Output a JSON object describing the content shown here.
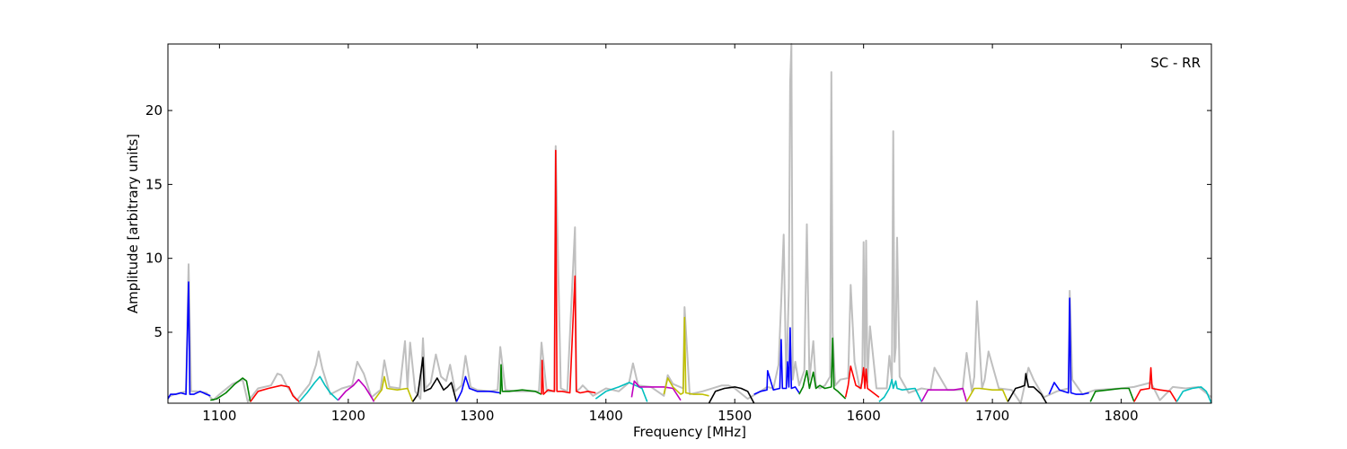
{
  "chart_data": {
    "type": "line",
    "title": "",
    "annotation": "SC - RR",
    "xlabel": "Frequency [MHz]",
    "ylabel": "Amplitude [arbitrary units]",
    "xlim": [
      1060,
      1870
    ],
    "ylim": [
      0.2,
      24.5
    ],
    "xticks": [
      1100,
      1200,
      1300,
      1400,
      1500,
      1600,
      1700,
      1800
    ],
    "yticks": [
      5,
      10,
      15,
      20
    ],
    "grid": false,
    "background_series": {
      "color": "#bfbfbf",
      "x": [
        1060,
        1065,
        1070,
        1074,
        1076,
        1078,
        1082,
        1090,
        1095,
        1100,
        1110,
        1118,
        1122,
        1130,
        1140,
        1145,
        1148,
        1152,
        1160,
        1170,
        1175,
        1177,
        1180,
        1186,
        1195,
        1203,
        1207,
        1212,
        1218,
        1225,
        1228,
        1232,
        1240,
        1244,
        1246,
        1248,
        1252,
        1256,
        1258,
        1260,
        1264,
        1268,
        1272,
        1276,
        1279,
        1283,
        1288,
        1291,
        1295,
        1300,
        1310,
        1316,
        1318,
        1322,
        1330,
        1340,
        1348,
        1350,
        1354,
        1360,
        1361,
        1365,
        1370,
        1376,
        1377,
        1380,
        1382,
        1390,
        1400,
        1410,
        1418,
        1421,
        1425,
        1435,
        1445,
        1448,
        1452,
        1460,
        1461,
        1465,
        1475,
        1490,
        1495,
        1500,
        1510,
        1520,
        1525,
        1530,
        1534,
        1536,
        1538,
        1540,
        1542,
        1543,
        1544,
        1545,
        1547,
        1550,
        1554,
        1556,
        1558,
        1561,
        1563,
        1566,
        1570,
        1574,
        1575,
        1576,
        1578,
        1582,
        1588,
        1590,
        1593,
        1597,
        1599,
        1600,
        1601,
        1602,
        1603,
        1605,
        1610,
        1618,
        1620,
        1622,
        1623,
        1624,
        1625,
        1626,
        1628,
        1635,
        1645,
        1652,
        1655,
        1665,
        1675,
        1677,
        1680,
        1684,
        1686,
        1688,
        1692,
        1694,
        1697,
        1705,
        1715,
        1722,
        1725,
        1728,
        1732,
        1740,
        1750,
        1759,
        1760,
        1762,
        1770,
        1780,
        1800,
        1810,
        1823,
        1830,
        1840,
        1850,
        1860,
        1870
      ],
      "y": [
        0.6,
        0.8,
        0.9,
        1.0,
        9.6,
        1.0,
        1.0,
        0.9,
        0.4,
        0.8,
        1.5,
        1.8,
        0.3,
        1.2,
        1.4,
        2.2,
        2.1,
        1.4,
        0.4,
        1.5,
        2.8,
        3.7,
        2.5,
        0.8,
        1.2,
        1.4,
        3.0,
        2.2,
        0.6,
        1.1,
        3.1,
        1.3,
        1.2,
        4.4,
        1.2,
        4.3,
        1.0,
        0.5,
        4.6,
        1.2,
        1.6,
        3.5,
        2.0,
        1.7,
        2.8,
        1.0,
        1.4,
        3.4,
        1.3,
        1.1,
        1.0,
        1.1,
        4.0,
        1.1,
        1.0,
        1.0,
        1.0,
        4.3,
        1.0,
        1.0,
        17.6,
        1.2,
        1.0,
        12.1,
        1.0,
        1.2,
        1.4,
        0.7,
        1.2,
        1.0,
        1.6,
        2.9,
        1.4,
        1.3,
        0.7,
        2.1,
        1.5,
        1.2,
        6.7,
        0.8,
        1.0,
        1.4,
        1.4,
        1.2,
        0.5,
        1.0,
        1.3,
        1.2,
        2.8,
        7.0,
        11.6,
        1.4,
        8.0,
        21.9,
        24.5,
        1.8,
        3.0,
        1.4,
        2.4,
        12.3,
        1.8,
        4.4,
        1.4,
        1.2,
        1.4,
        2.0,
        22.6,
        5.0,
        1.4,
        1.8,
        1.9,
        8.2,
        3.0,
        1.2,
        1.6,
        11.1,
        2.0,
        11.2,
        1.6,
        5.4,
        1.2,
        1.2,
        3.4,
        1.8,
        18.6,
        3.0,
        4.0,
        11.4,
        2.0,
        0.9,
        1.2,
        1.1,
        2.6,
        1.1,
        1.1,
        1.2,
        3.6,
        1.0,
        2.0,
        7.1,
        1.2,
        1.8,
        3.7,
        1.2,
        1.1,
        0.2,
        1.4,
        2.6,
        1.8,
        0.6,
        1.0,
        1.2,
        7.8,
        1.8,
        0.8,
        1.1,
        1.2,
        1.3,
        1.6,
        0.4,
        1.3,
        1.2,
        1.3,
        0.6
      ]
    },
    "series": [
      {
        "color": "#0000ff",
        "x": [
          1060,
          1062,
          1066,
          1070,
          1074,
          1076,
          1077,
          1080,
          1085,
          1090,
          1093
        ],
        "y": [
          0.5,
          0.8,
          0.8,
          0.9,
          0.8,
          8.4,
          0.8,
          0.8,
          1.0,
          0.8,
          0.7
        ]
      },
      {
        "color": "#008000",
        "x": [
          1093,
          1098,
          1105,
          1112,
          1118,
          1121,
          1124
        ],
        "y": [
          0.4,
          0.5,
          0.9,
          1.5,
          1.9,
          1.7,
          0.3
        ]
      },
      {
        "color": "#ff0000",
        "x": [
          1124,
          1130,
          1138,
          1148,
          1154,
          1157,
          1162
        ],
        "y": [
          0.3,
          1.0,
          1.2,
          1.4,
          1.3,
          0.7,
          0.3
        ]
      },
      {
        "color": "#00bfbf",
        "x": [
          1162,
          1168,
          1174,
          1178,
          1182,
          1186,
          1192
        ],
        "y": [
          0.3,
          0.9,
          1.6,
          2.0,
          1.4,
          0.9,
          0.4
        ]
      },
      {
        "color": "#bf00bf",
        "x": [
          1192,
          1198,
          1204,
          1208,
          1213,
          1218,
          1220
        ],
        "y": [
          0.4,
          1.0,
          1.4,
          1.8,
          1.3,
          0.6,
          0.3
        ]
      },
      {
        "color": "#bfbf00",
        "x": [
          1220,
          1226,
          1228,
          1230,
          1238,
          1246,
          1250
        ],
        "y": [
          0.4,
          1.1,
          2.0,
          1.2,
          1.1,
          1.2,
          0.3
        ]
      },
      {
        "color": "#000000",
        "x": [
          1250,
          1254,
          1258,
          1259,
          1264,
          1269,
          1274,
          1277,
          1280,
          1284
        ],
        "y": [
          0.3,
          0.8,
          3.3,
          1.0,
          1.2,
          1.9,
          1.1,
          1.3,
          1.6,
          0.3
        ]
      },
      {
        "color": "#0000ff",
        "x": [
          1284,
          1288,
          1291,
          1294,
          1300,
          1310,
          1318
        ],
        "y": [
          0.3,
          1.0,
          2.0,
          1.2,
          1.0,
          1.0,
          0.9
        ]
      },
      {
        "color": "#008000",
        "x": [
          1318,
          1318.6,
          1319.5,
          1325,
          1335,
          1345,
          1350
        ],
        "y": [
          0.8,
          2.8,
          1.0,
          1.0,
          1.1,
          1.0,
          0.8
        ]
      },
      {
        "color": "#ff0000",
        "x": [
          1350,
          1350.5,
          1351.5,
          1355,
          1360,
          1361,
          1362,
          1366,
          1372,
          1376,
          1377,
          1380,
          1386,
          1392
        ],
        "y": [
          0.8,
          3.1,
          0.8,
          1.1,
          1.0,
          17.3,
          1.0,
          1.0,
          0.9,
          8.8,
          1.0,
          0.9,
          1.0,
          0.9
        ]
      },
      {
        "color": "#00bfbf",
        "x": [
          1392,
          1400,
          1410,
          1418,
          1423,
          1428,
          1432
        ],
        "y": [
          0.5,
          1.0,
          1.3,
          1.6,
          1.4,
          1.2,
          0.3
        ]
      },
      {
        "color": "#bf00bf",
        "x": [
          1420,
          1422,
          1426,
          1435,
          1445,
          1452,
          1458
        ],
        "y": [
          0.6,
          1.7,
          1.3,
          1.3,
          1.3,
          1.2,
          0.4
        ]
      },
      {
        "color": "#bfbf00",
        "x": [
          1445,
          1448,
          1452,
          1458,
          1460,
          1461,
          1462,
          1468,
          1475,
          1480
        ],
        "y": [
          0.8,
          1.9,
          1.3,
          0.8,
          0.9,
          6.0,
          0.9,
          0.8,
          0.8,
          0.7
        ]
      },
      {
        "color": "#000000",
        "x": [
          1480,
          1485,
          1492,
          1500,
          1505,
          1510,
          1515
        ],
        "y": [
          0.2,
          1.0,
          1.2,
          1.3,
          1.2,
          1.0,
          0.2
        ]
      },
      {
        "color": "#0000ff",
        "x": [
          1515,
          1520,
          1525,
          1525.5,
          1530,
          1535,
          1536,
          1537,
          1540,
          1541,
          1542,
          1543,
          1544,
          1547,
          1550
        ],
        "y": [
          0.8,
          1.0,
          1.1,
          2.4,
          1.1,
          1.2,
          4.5,
          1.2,
          1.2,
          3.0,
          1.3,
          5.3,
          1.2,
          1.3,
          0.9
        ]
      },
      {
        "color": "#008000",
        "x": [
          1550,
          1553,
          1556,
          1558,
          1561,
          1563,
          1566,
          1570,
          1575,
          1576,
          1577,
          1580,
          1586
        ],
        "y": [
          0.8,
          1.3,
          2.4,
          1.2,
          2.3,
          1.2,
          1.4,
          1.2,
          1.3,
          4.6,
          1.2,
          1.0,
          0.5
        ]
      },
      {
        "color": "#ff0000",
        "x": [
          1586,
          1588,
          1590,
          1594,
          1598,
          1600,
          1601,
          1602,
          1603,
          1606,
          1612
        ],
        "y": [
          0.6,
          1.4,
          2.7,
          1.4,
          1.2,
          2.6,
          1.2,
          2.5,
          1.2,
          1.0,
          0.6
        ]
      },
      {
        "color": "#00bfbf",
        "x": [
          1612,
          1616,
          1620,
          1622,
          1623,
          1625,
          1626,
          1630,
          1640,
          1645
        ],
        "y": [
          0.3,
          0.6,
          1.2,
          1.8,
          1.2,
          1.7,
          1.2,
          1.1,
          1.2,
          0.3
        ]
      },
      {
        "color": "#bf00bf",
        "x": [
          1645,
          1650,
          1660,
          1670,
          1677,
          1680
        ],
        "y": [
          0.3,
          1.1,
          1.1,
          1.1,
          1.2,
          0.3
        ]
      },
      {
        "color": "#bfbf00",
        "x": [
          1680,
          1686,
          1690,
          1700,
          1708,
          1712
        ],
        "y": [
          0.3,
          1.2,
          1.2,
          1.1,
          1.1,
          0.3
        ]
      },
      {
        "color": "#000000",
        "x": [
          1712,
          1718,
          1722,
          1725,
          1726,
          1728,
          1732,
          1738,
          1742
        ],
        "y": [
          0.3,
          1.2,
          1.3,
          1.4,
          2.2,
          1.3,
          1.3,
          0.8,
          0.2
        ]
      },
      {
        "color": "#0000ff",
        "x": [
          1744,
          1748,
          1752,
          1759,
          1760,
          1761,
          1765,
          1770,
          1775
        ],
        "y": [
          0.8,
          1.6,
          1.1,
          0.9,
          7.3,
          0.9,
          0.8,
          0.8,
          0.9
        ]
      },
      {
        "color": "#008000",
        "x": [
          1776,
          1780,
          1790,
          1800,
          1806,
          1810
        ],
        "y": [
          0.3,
          1.0,
          1.1,
          1.2,
          1.2,
          0.3
        ]
      },
      {
        "color": "#ff0000",
        "x": [
          1810,
          1815,
          1822,
          1823,
          1824,
          1830,
          1838,
          1843
        ],
        "y": [
          0.3,
          1.1,
          1.2,
          2.6,
          1.2,
          1.1,
          1.0,
          0.3
        ]
      },
      {
        "color": "#00bfbf",
        "x": [
          1843,
          1848,
          1855,
          1862,
          1866,
          1870
        ],
        "y": [
          0.3,
          1.0,
          1.2,
          1.3,
          1.0,
          0.2
        ]
      }
    ]
  }
}
